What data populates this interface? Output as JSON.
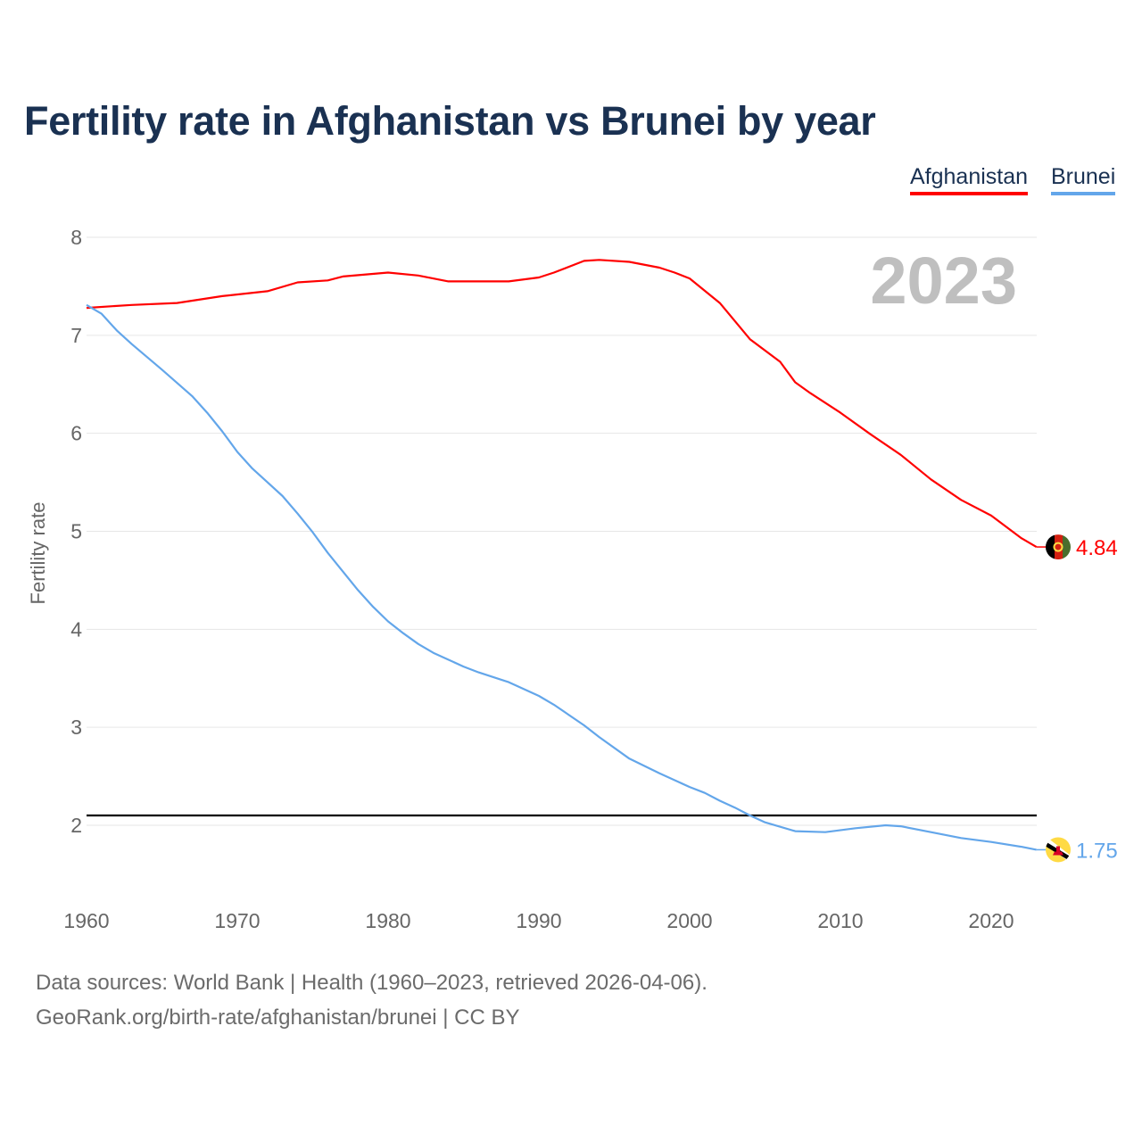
{
  "chart_data": {
    "type": "line",
    "title": "Fertility rate in Afghanistan vs Brunei by year",
    "xlabel": "",
    "ylabel": "Fertility rate",
    "xlim": [
      1960,
      2023
    ],
    "ylim": [
      1.5,
      8
    ],
    "xticks": [
      1960,
      1970,
      1980,
      1990,
      2000,
      2010,
      2020
    ],
    "yticks": [
      2,
      3,
      4,
      5,
      6,
      7,
      8
    ],
    "grid": true,
    "legend_position": "top-right",
    "year_label": "2023",
    "reference_line": {
      "value": 2.1,
      "color": "#000000"
    },
    "series": [
      {
        "name": "Afghanistan",
        "color": "#ff0000",
        "end_label": "4.84",
        "flag": "afghanistan-flag",
        "x": [
          1960,
          1963,
          1966,
          1969,
          1972,
          1974,
          1976,
          1977,
          1980,
          1982,
          1984,
          1988,
          1990,
          1991,
          1993,
          1994,
          1996,
          1998,
          1999,
          2000,
          2002,
          2004,
          2006,
          2007,
          2008,
          2010,
          2012,
          2014,
          2016,
          2018,
          2020,
          2022,
          2023
        ],
        "y": [
          7.28,
          7.31,
          7.33,
          7.4,
          7.45,
          7.54,
          7.56,
          7.6,
          7.64,
          7.61,
          7.55,
          7.55,
          7.59,
          7.64,
          7.76,
          7.77,
          7.75,
          7.69,
          7.64,
          7.58,
          7.33,
          6.96,
          6.73,
          6.52,
          6.41,
          6.21,
          5.99,
          5.78,
          5.53,
          5.32,
          5.16,
          4.93,
          4.84
        ]
      },
      {
        "name": "Brunei",
        "color": "#63a6ea",
        "end_label": "1.75",
        "flag": "brunei-flag",
        "x": [
          1960,
          1961,
          1962,
          1963,
          1965,
          1967,
          1968,
          1969,
          1970,
          1971,
          1972,
          1973,
          1974,
          1975,
          1976,
          1978,
          1979,
          1980,
          1981,
          1982,
          1983,
          1985,
          1986,
          1988,
          1990,
          1991,
          1993,
          1994,
          1996,
          1998,
          2000,
          2001,
          2002,
          2003,
          2004,
          2005,
          2007,
          2009,
          2011,
          2013,
          2014,
          2016,
          2018,
          2020,
          2022,
          2023
        ],
        "y": [
          7.31,
          7.22,
          7.05,
          6.91,
          6.65,
          6.38,
          6.21,
          6.02,
          5.81,
          5.64,
          5.5,
          5.36,
          5.18,
          4.99,
          4.78,
          4.4,
          4.23,
          4.08,
          3.96,
          3.85,
          3.76,
          3.62,
          3.56,
          3.46,
          3.32,
          3.23,
          3.02,
          2.9,
          2.68,
          2.53,
          2.39,
          2.33,
          2.25,
          2.18,
          2.1,
          2.03,
          1.94,
          1.93,
          1.97,
          2.0,
          1.99,
          1.93,
          1.87,
          1.83,
          1.78,
          1.75
        ]
      }
    ]
  },
  "footer": {
    "line1": "Data sources: World Bank | Health (1960–2023, retrieved 2026-04-06).",
    "line2": "GeoRank.org/birth-rate/afghanistan/brunei | CC BY"
  }
}
